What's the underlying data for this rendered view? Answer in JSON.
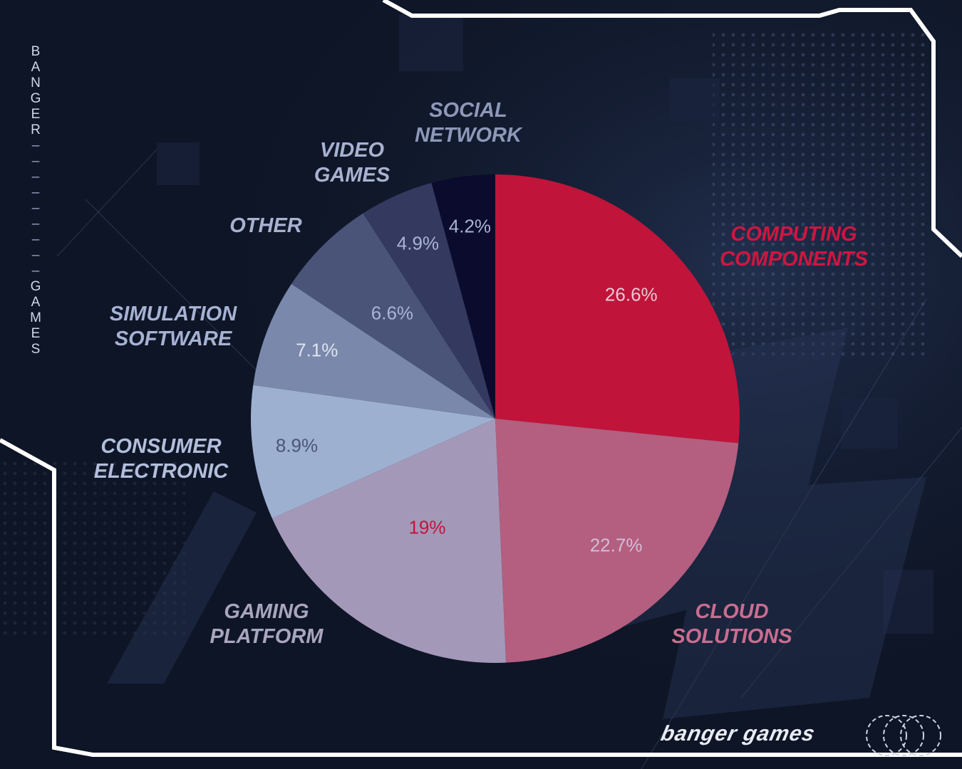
{
  "brand": {
    "vertical_text": [
      "B",
      "A",
      "N",
      "G",
      "E",
      "R",
      "–",
      "–",
      "–",
      "–",
      "–",
      "–",
      "–",
      "–",
      "–",
      "G",
      "A",
      "M",
      "E",
      "S"
    ],
    "footer_logo": "banger games",
    "emblem_icon": "interlocking-rings-icon"
  },
  "colors": {
    "background": "#0e1526",
    "frame": "#ffffff"
  },
  "chart_data": {
    "type": "pie",
    "start": "12 o'clock, clockwise",
    "slices": [
      {
        "label": "COMPUTING\nCOMPONENTS",
        "value": 26.6,
        "value_label": "26.6%",
        "color": "#c0143a",
        "label_color": "#d01540",
        "value_color": "#e7c9d6"
      },
      {
        "label": "CLOUD\nSOLUTIONS",
        "value": 22.7,
        "value_label": "22.7%",
        "color": "#b45e80",
        "label_color": "#c96d90",
        "value_color": "#d2bed6"
      },
      {
        "label": "GAMING\nPLATFORM",
        "value": 19,
        "value_label": "19%",
        "color": "#a498b8",
        "label_color": "#a9a5bf",
        "value_color": "#c0153c"
      },
      {
        "label": "CONSUMER\nELECTRONIC",
        "value": 8.9,
        "value_label": "8.9%",
        "color": "#9eb0d0",
        "label_color": "#b2bedb",
        "value_color": "#4a5574"
      },
      {
        "label": "SIMULATION\nSOFTWARE",
        "value": 7.1,
        "value_label": "7.1%",
        "color": "#7a88ab",
        "label_color": "#a6b2d3",
        "value_color": "#dfe4f0"
      },
      {
        "label": "OTHER",
        "value": 6.6,
        "value_label": "6.6%",
        "color": "#4a5479",
        "label_color": "#a8b2d0",
        "value_color": "#a9b4d4"
      },
      {
        "label": "VIDEO\nGAMES",
        "value": 4.9,
        "value_label": "4.9%",
        "color": "#33395f",
        "label_color": "#a8b2d0",
        "value_color": "#a9b4d4"
      },
      {
        "label": "SOCIAL\nNETWORK",
        "value": 4.2,
        "value_label": "4.2%",
        "color": "#0b0b2d",
        "label_color": "#8e98b8",
        "value_color": "#a9b4d4"
      }
    ]
  }
}
